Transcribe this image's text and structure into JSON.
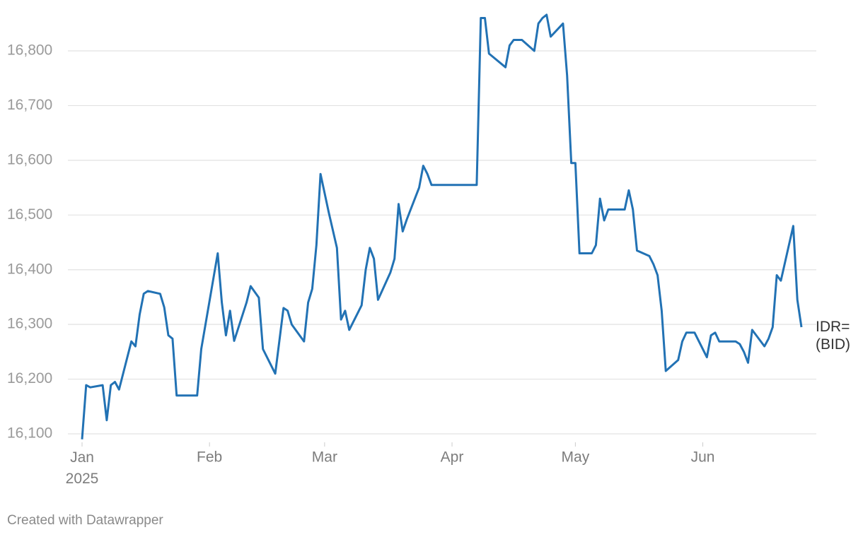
{
  "chart_data": {
    "type": "line",
    "x": [
      1,
      2,
      3,
      6,
      7,
      8,
      9,
      10,
      13,
      14,
      15,
      16,
      17,
      20,
      21,
      22,
      23,
      24,
      29,
      30,
      34,
      35,
      36,
      37,
      38,
      41,
      42,
      44,
      45,
      48,
      50,
      51,
      52,
      55,
      56,
      57,
      58,
      59,
      61,
      63,
      64,
      65,
      66,
      69,
      70,
      71,
      72,
      73,
      76,
      77,
      78,
      79,
      80,
      83,
      84,
      85,
      86,
      97,
      98,
      99,
      100,
      104,
      105,
      106,
      108,
      111,
      112,
      113,
      114,
      115,
      118,
      119,
      120,
      121,
      122,
      125,
      126,
      127,
      128,
      129,
      133,
      134,
      135,
      136,
      139,
      140,
      141,
      142,
      143,
      146,
      147,
      148,
      150,
      153,
      154,
      155,
      156,
      160,
      161,
      162,
      163,
      164,
      167,
      168,
      169,
      170,
      171,
      174,
      175,
      176
    ],
    "series": [
      {
        "name": "IDR= (BID)",
        "color": "#2272b4",
        "values": [
          16090,
          16189,
          16185,
          16189,
          16125,
          16189,
          16195,
          16181,
          16269,
          16260,
          16318,
          16356,
          16361,
          16356,
          16331,
          16280,
          16274,
          16170,
          16170,
          16255,
          16430,
          16340,
          16280,
          16325,
          16270,
          16340,
          16370,
          16349,
          16255,
          16210,
          16330,
          16325,
          16300,
          16269,
          16340,
          16365,
          16445,
          16575,
          16505,
          16440,
          16309,
          16325,
          16290,
          16335,
          16400,
          16440,
          16420,
          16345,
          16395,
          16420,
          16520,
          16470,
          16492,
          16550,
          16590,
          16575,
          16555,
          16555,
          16860,
          16860,
          16795,
          16770,
          16810,
          16820,
          16820,
          16800,
          16850,
          16860,
          16866,
          16826,
          16850,
          16755,
          16595,
          16595,
          16430,
          16430,
          16445,
          16530,
          16490,
          16510,
          16510,
          16545,
          16510,
          16435,
          16425,
          16410,
          16390,
          16325,
          16215,
          16235,
          16269,
          16285,
          16285,
          16240,
          16280,
          16285,
          16269,
          16269,
          16264,
          16250,
          16230,
          16290,
          16260,
          16274,
          16295,
          16390,
          16380,
          16480,
          16345,
          16295
        ]
      }
    ],
    "xlim": [
      1,
      176
    ],
    "xticks": [
      {
        "value": 1,
        "label": "Jan 2025"
      },
      {
        "value": 32,
        "label": "Feb"
      },
      {
        "value": 60,
        "label": "Mar"
      },
      {
        "value": 91,
        "label": "Apr"
      },
      {
        "value": 121,
        "label": "May"
      },
      {
        "value": 152,
        "label": "Jun"
      }
    ],
    "ylim": [
      16080,
      16870
    ],
    "yticks": [
      {
        "value": 16100,
        "label": "16,100"
      },
      {
        "value": 16200,
        "label": "16,200"
      },
      {
        "value": 16300,
        "label": "16,300"
      },
      {
        "value": 16400,
        "label": "16,400"
      },
      {
        "value": 16500,
        "label": "16,500"
      },
      {
        "value": 16600,
        "label": "16,600"
      },
      {
        "value": 16700,
        "label": "16,700"
      },
      {
        "value": 16800,
        "label": "16,800"
      }
    ],
    "grid": true,
    "credit": "Created with Datawrapper"
  }
}
